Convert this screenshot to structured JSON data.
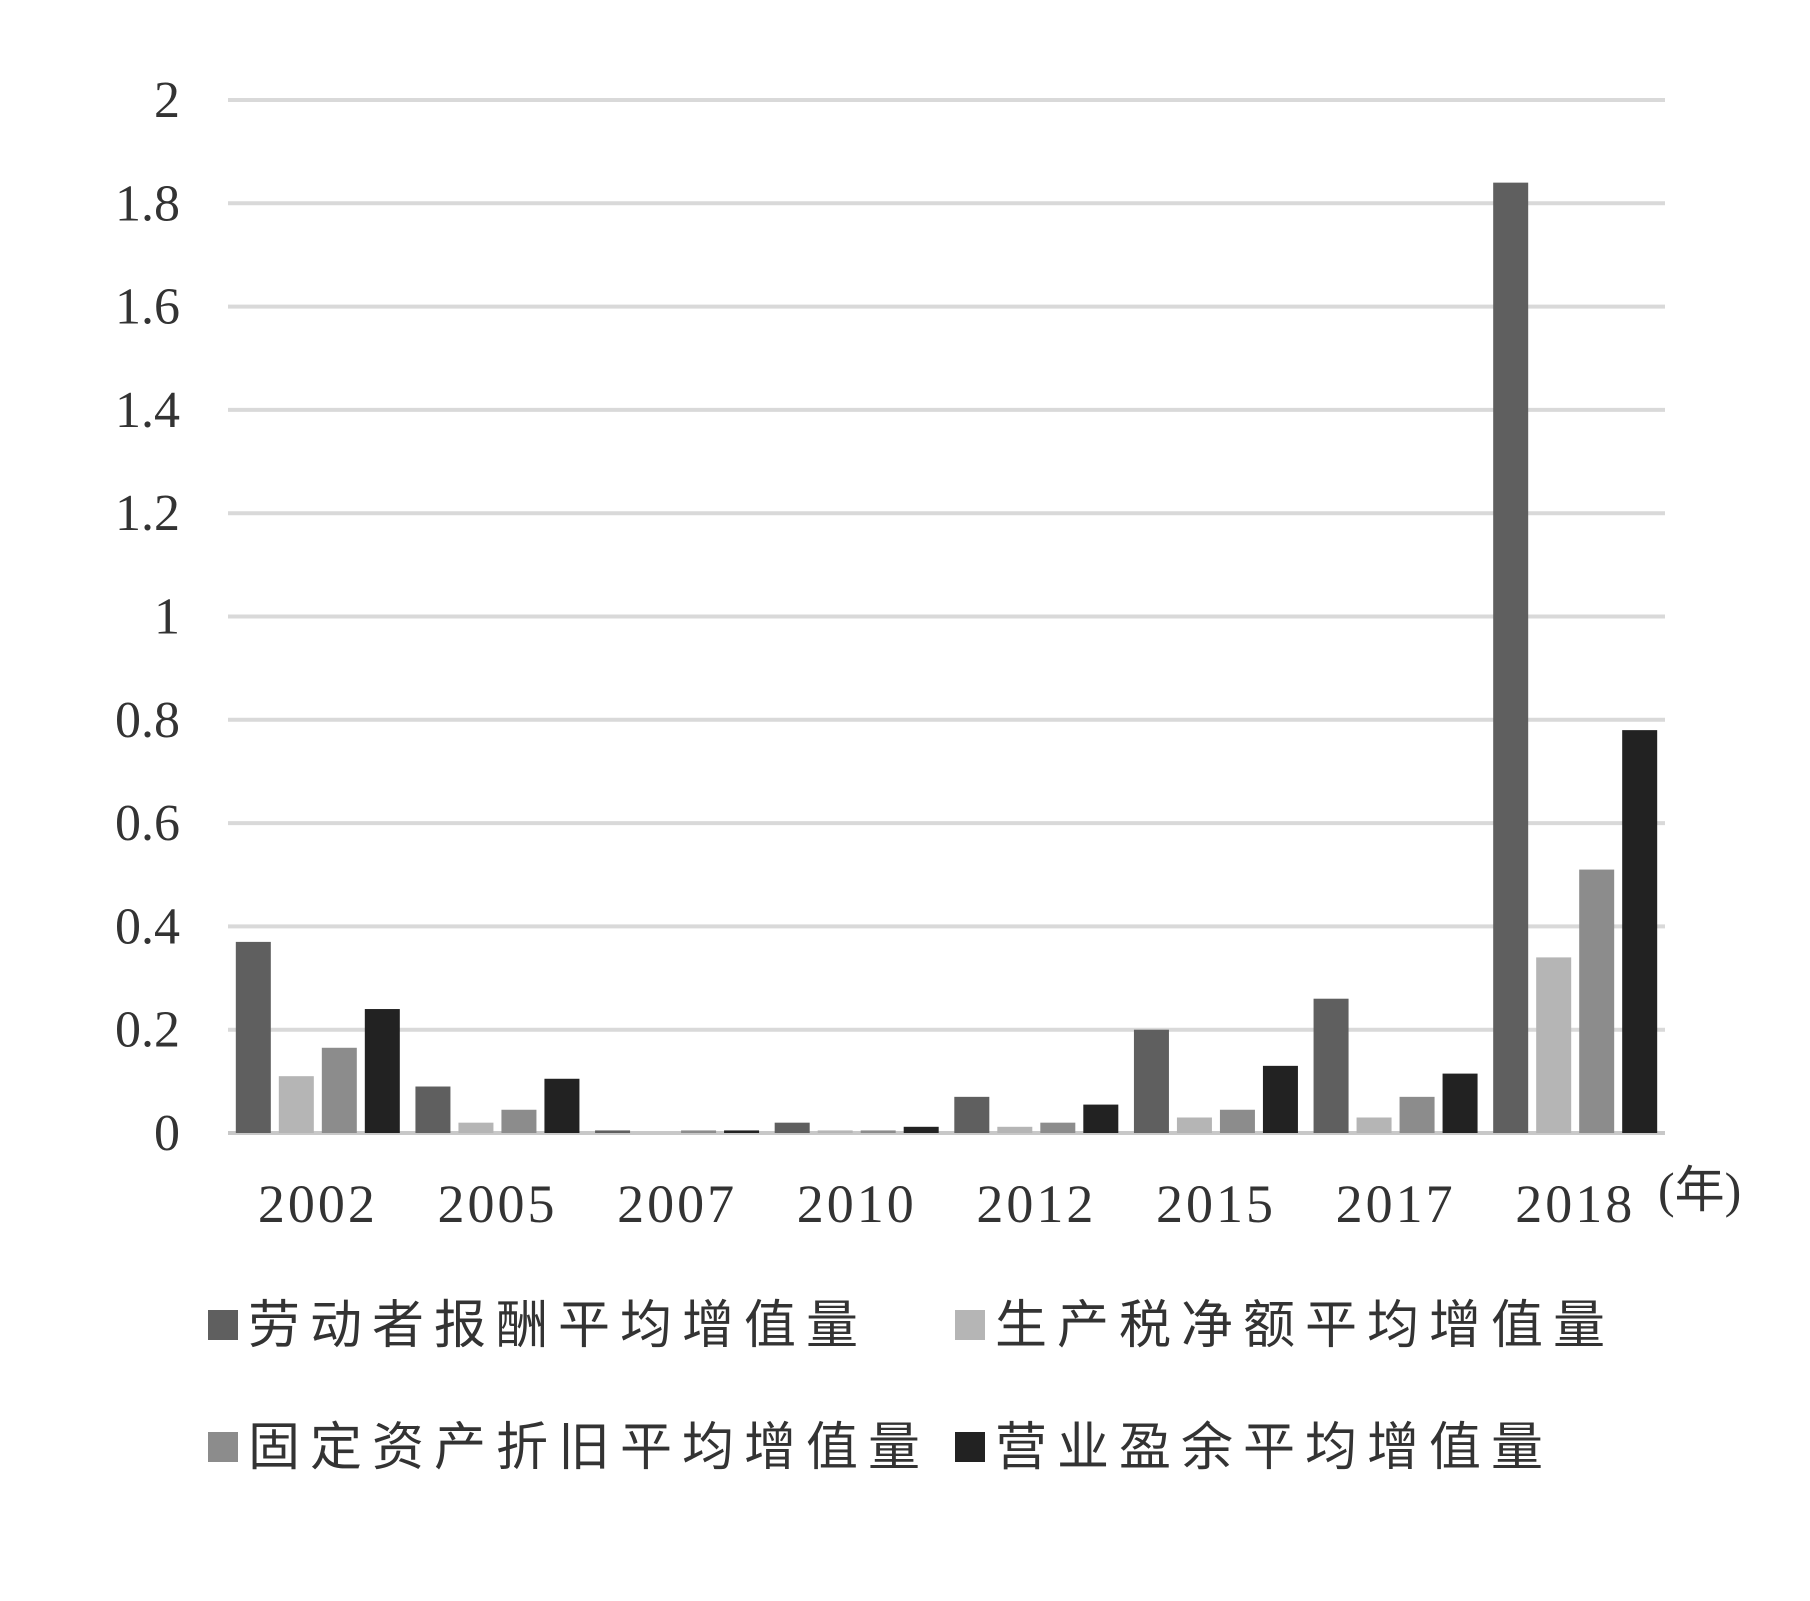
{
  "chart_data": {
    "type": "bar",
    "categories": [
      "2002",
      "2005",
      "2007",
      "2010",
      "2012",
      "2015",
      "2017",
      "2018"
    ],
    "series": [
      {
        "name": "劳动者报酬平均增值量",
        "color": "#5f5f5f",
        "values": [
          0.37,
          0.09,
          0.005,
          0.02,
          0.07,
          0.2,
          0.26,
          1.84
        ]
      },
      {
        "name": "生产税净额平均增值量",
        "color": "#b5b5b5",
        "values": [
          0.11,
          0.02,
          0.0,
          0.005,
          0.012,
          0.03,
          0.03,
          0.34
        ]
      },
      {
        "name": "固定资产折旧平均增值量",
        "color": "#8c8c8c",
        "values": [
          0.165,
          0.045,
          0.005,
          0.005,
          0.02,
          0.045,
          0.07,
          0.51
        ]
      },
      {
        "name": "营业盈余平均增值量",
        "color": "#222222",
        "values": [
          0.24,
          0.105,
          0.005,
          0.012,
          0.055,
          0.13,
          0.115,
          0.78
        ]
      }
    ],
    "y_ticks": [
      "0",
      "0.2",
      "0.4",
      "0.6",
      "0.8",
      "1",
      "1.2",
      "1.4",
      "1.6",
      "1.8",
      "2"
    ],
    "ylim": [
      0,
      2
    ],
    "x_unit_label": "(年)",
    "grid": true,
    "legend_position": "bottom"
  }
}
